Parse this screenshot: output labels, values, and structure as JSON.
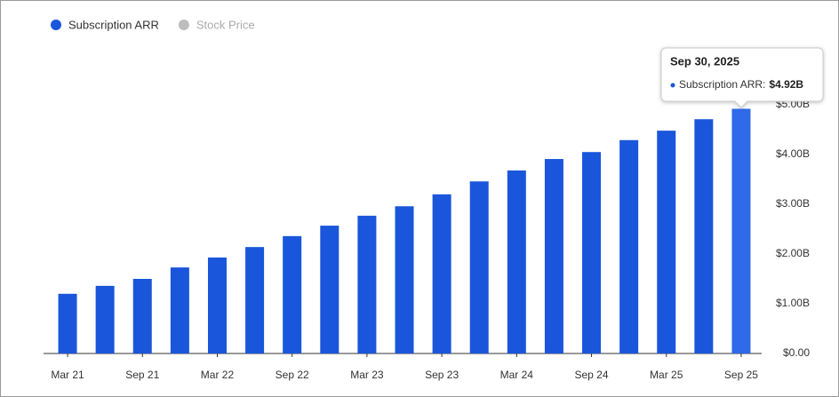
{
  "chart_data": {
    "type": "bar",
    "categories": [
      "Mar 21",
      null,
      "Sep 21",
      null,
      "Mar 22",
      null,
      "Sep 22",
      null,
      "Mar 23",
      null,
      "Sep 23",
      null,
      "Mar 24",
      null,
      "Sep 24",
      null,
      "Mar 25",
      null,
      "Sep 25"
    ],
    "series": [
      {
        "name": "Subscription ARR",
        "color": "#1a56db",
        "values": [
          1.2,
          1.36,
          1.5,
          1.73,
          1.93,
          2.14,
          2.36,
          2.57,
          2.77,
          2.96,
          3.2,
          3.46,
          3.68,
          3.91,
          4.05,
          4.29,
          4.48,
          4.71,
          4.92
        ]
      }
    ],
    "hidden_series": [
      {
        "name": "Stock Price",
        "color": "#bdbdbd"
      }
    ],
    "ylim": [
      0,
      5
    ],
    "yticks": [
      {
        "value": 0,
        "label": "$0.00"
      },
      {
        "value": 1,
        "label": "$1.00B"
      },
      {
        "value": 2,
        "label": "$2.00B"
      },
      {
        "value": 3,
        "label": "$3.00B"
      },
      {
        "value": 4,
        "label": "$4.00B"
      },
      {
        "value": 5,
        "label": "$5.00B"
      }
    ],
    "y_axis_side": "right",
    "grid": false,
    "tooltip": {
      "index": 18,
      "date": "Sep 30, 2025",
      "label": "Subscription ARR:",
      "value": 4.92,
      "value_label": "$4.92B"
    }
  }
}
